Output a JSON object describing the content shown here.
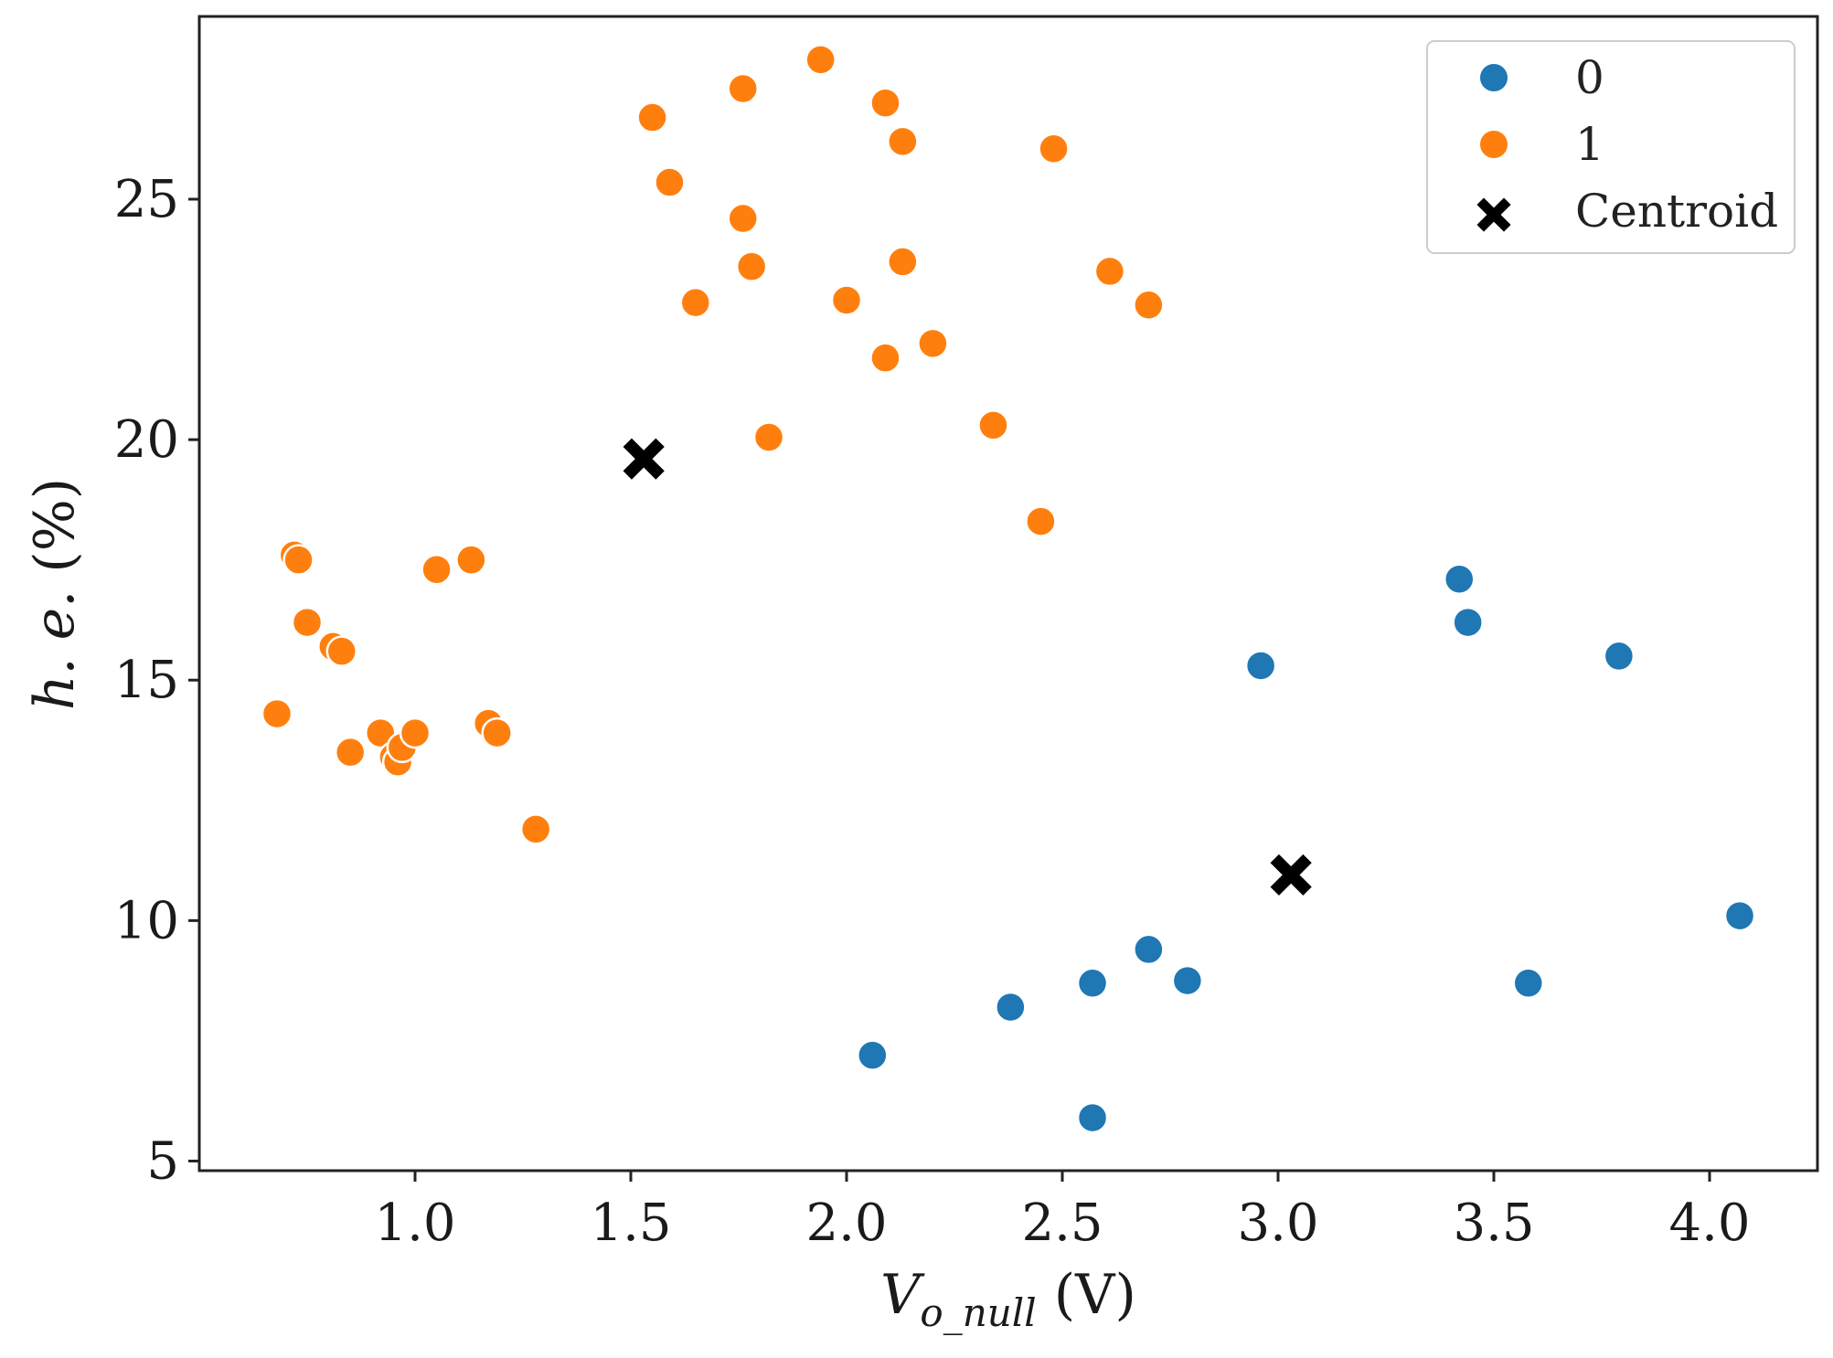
{
  "chart_data": {
    "type": "scatter",
    "title": "",
    "xlabel": {
      "main": "V",
      "sub": "o_null",
      "unit": " (V)"
    },
    "ylabel": {
      "main": "h. e.",
      "unit": " (%)"
    },
    "xlim": [
      0.5,
      4.25
    ],
    "ylim": [
      4.8,
      28.8
    ],
    "xticks": [
      1.0,
      1.5,
      2.0,
      2.5,
      3.0,
      3.5,
      4.0
    ],
    "xtick_labels": [
      "1.0",
      "1.5",
      "2.0",
      "2.5",
      "3.0",
      "3.5",
      "4.0"
    ],
    "yticks": [
      5,
      10,
      15,
      20,
      25
    ],
    "ytick_labels": [
      "5",
      "10",
      "15",
      "20",
      "25"
    ],
    "grid": false,
    "legend_position": "top-right",
    "series": [
      {
        "name": "0",
        "color": "#1f77b4",
        "marker": "circle",
        "points": [
          [
            2.06,
            7.2
          ],
          [
            2.38,
            8.2
          ],
          [
            2.57,
            8.7
          ],
          [
            2.57,
            5.9
          ],
          [
            2.7,
            9.4
          ],
          [
            2.79,
            8.75
          ],
          [
            2.96,
            15.3
          ],
          [
            3.42,
            17.1
          ],
          [
            3.44,
            16.2
          ],
          [
            3.58,
            8.7
          ],
          [
            3.79,
            15.5
          ],
          [
            4.07,
            10.1
          ]
        ]
      },
      {
        "name": "1",
        "color": "#ff7f0e",
        "marker": "circle",
        "points": [
          [
            0.68,
            14.3
          ],
          [
            0.72,
            17.6
          ],
          [
            0.73,
            17.5
          ],
          [
            0.75,
            16.2
          ],
          [
            0.81,
            15.7
          ],
          [
            0.83,
            15.6
          ],
          [
            0.85,
            13.5
          ],
          [
            0.92,
            13.9
          ],
          [
            0.95,
            13.4
          ],
          [
            0.96,
            13.3
          ],
          [
            0.97,
            13.6
          ],
          [
            1.0,
            13.9
          ],
          [
            1.05,
            17.3
          ],
          [
            1.13,
            17.5
          ],
          [
            1.17,
            14.1
          ],
          [
            1.19,
            13.9
          ],
          [
            1.28,
            11.9
          ],
          [
            1.55,
            26.7
          ],
          [
            1.59,
            25.35
          ],
          [
            1.65,
            22.85
          ],
          [
            1.76,
            27.3
          ],
          [
            1.76,
            24.6
          ],
          [
            1.78,
            23.6
          ],
          [
            1.82,
            20.05
          ],
          [
            1.94,
            27.9
          ],
          [
            2.0,
            22.9
          ],
          [
            2.09,
            27.0
          ],
          [
            2.09,
            21.7
          ],
          [
            2.13,
            26.2
          ],
          [
            2.13,
            23.7
          ],
          [
            2.2,
            22.0
          ],
          [
            2.34,
            20.3
          ],
          [
            2.45,
            18.3
          ],
          [
            2.48,
            26.05
          ],
          [
            2.61,
            23.5
          ],
          [
            2.7,
            22.8
          ]
        ]
      },
      {
        "name": "Centroid",
        "color": "#000000",
        "marker": "x",
        "points": [
          [
            1.53,
            19.6
          ],
          [
            3.03,
            10.95
          ]
        ]
      }
    ]
  }
}
